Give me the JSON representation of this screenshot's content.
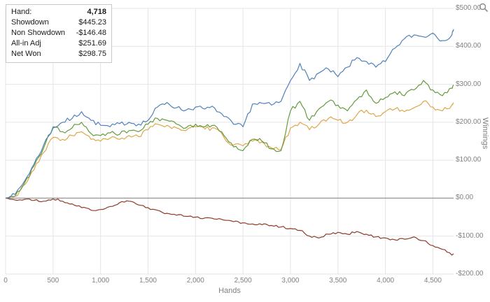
{
  "legend": {
    "rows": [
      {
        "label": "Hand:",
        "value": "4,718"
      },
      {
        "label": "Showdown",
        "value": "$445.23"
      },
      {
        "label": "Non Showdown",
        "value": "-$146.48"
      },
      {
        "label": "All-in Adj",
        "value": "$251.69"
      },
      {
        "label": "Net Won",
        "value": "$298.75"
      }
    ]
  },
  "colors": {
    "grid": "#e5e5e5",
    "zero_line": "#9b9b9b",
    "axis_text": "#808080",
    "legend_border": "#c9c9c9"
  },
  "chart_data": {
    "type": "line",
    "title": "",
    "xlabel": "Hands",
    "ylabel": "Winnings",
    "xlim": [
      0,
      4718
    ],
    "ylim": [
      -200,
      500
    ],
    "grid": true,
    "zero_line": true,
    "legend_position": "top-left",
    "x_ticks": [
      0,
      500,
      1000,
      1500,
      2000,
      2500,
      3000,
      3500,
      4000,
      4500
    ],
    "x_tick_labels": [
      "0",
      "500",
      "1,000",
      "1,500",
      "2,000",
      "2,500",
      "3,000",
      "3,500",
      "4,000",
      "4,500"
    ],
    "y_ticks": [
      500,
      400,
      300,
      200,
      100,
      0,
      -100,
      -200
    ],
    "y_tick_labels": [
      "$500.00",
      "$400.00",
      "$300.00",
      "$200.00",
      "$100.00",
      "$0.00",
      "-$100.00",
      "-$200.00"
    ],
    "x": [
      0,
      100,
      200,
      300,
      400,
      500,
      600,
      700,
      800,
      900,
      1000,
      1100,
      1200,
      1300,
      1400,
      1500,
      1600,
      1700,
      1800,
      1900,
      2000,
      2100,
      2200,
      2300,
      2400,
      2500,
      2600,
      2700,
      2800,
      2900,
      3000,
      3100,
      3200,
      3300,
      3400,
      3500,
      3600,
      3700,
      3800,
      3900,
      4000,
      4100,
      4200,
      4300,
      4400,
      4500,
      4600,
      4700,
      4718
    ],
    "series": [
      {
        "name": "Showdown",
        "color": "#4f81bd",
        "final_value": 445.23,
        "values": [
          0,
          10,
          45,
          90,
          140,
          185,
          200,
          210,
          228,
          205,
          192,
          188,
          196,
          200,
          195,
          205,
          240,
          252,
          238,
          232,
          240,
          235,
          238,
          215,
          195,
          188,
          248,
          250,
          245,
          255,
          310,
          355,
          310,
          330,
          340,
          320,
          345,
          370,
          360,
          345,
          360,
          395,
          420,
          430,
          425,
          435,
          415,
          430,
          445.23
        ]
      },
      {
        "name": "Non Showdown",
        "color": "#8e3a28",
        "final_value": -146.48,
        "values": [
          0,
          -5,
          -3,
          -6,
          -8,
          -2,
          -8,
          -15,
          -25,
          -32,
          -30,
          -22,
          -12,
          -8,
          -18,
          -25,
          -32,
          -40,
          -45,
          -48,
          -50,
          -52,
          -55,
          -58,
          -62,
          -65,
          -68,
          -70,
          -72,
          -76,
          -80,
          -85,
          -100,
          -105,
          -95,
          -90,
          -95,
          -88,
          -95,
          -102,
          -105,
          -110,
          -108,
          -102,
          -112,
          -125,
          -135,
          -150,
          -146.48
        ]
      },
      {
        "name": "All-in Adj",
        "color": "#dfa648",
        "final_value": 251.69,
        "values": [
          0,
          5,
          35,
          75,
          120,
          160,
          155,
          165,
          175,
          155,
          150,
          158,
          155,
          165,
          162,
          180,
          195,
          192,
          185,
          178,
          188,
          182,
          185,
          160,
          140,
          138,
          150,
          148,
          132,
          128,
          185,
          200,
          180,
          195,
          210,
          205,
          200,
          220,
          232,
          215,
          228,
          235,
          228,
          238,
          255,
          240,
          230,
          245,
          251.69
        ]
      },
      {
        "name": "Net Won",
        "color": "#649b3d",
        "final_value": 298.75,
        "values": [
          0,
          5,
          40,
          85,
          132,
          188,
          175,
          185,
          200,
          170,
          165,
          172,
          168,
          178,
          175,
          195,
          210,
          205,
          195,
          185,
          195,
          188,
          192,
          165,
          135,
          125,
          155,
          150,
          130,
          125,
          230,
          255,
          205,
          235,
          255,
          245,
          230,
          260,
          285,
          250,
          265,
          280,
          270,
          285,
          310,
          285,
          270,
          290,
          298.75
        ]
      }
    ]
  }
}
